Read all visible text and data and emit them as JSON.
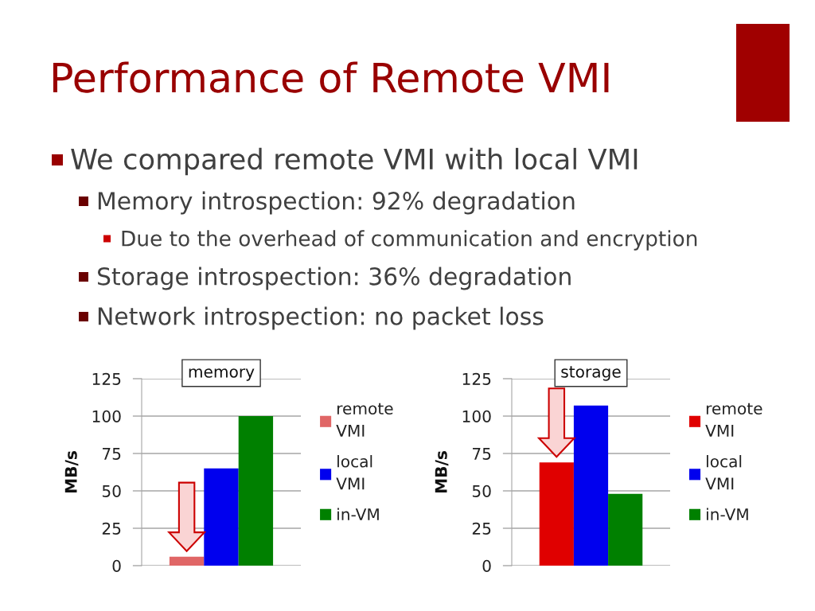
{
  "chart_data": [
    {
      "type": "other",
      "title": "Performance of Remote VMI",
      "annotations": [
        "We compared remote VMI with local VMI",
        "Memory introspection: 92% degradation",
        "Due to the overhead of communication and encryption",
        "Storage introspection: 36% degradation",
        "Network introspection: no packet loss"
      ]
    },
    {
      "type": "bar",
      "title": "memory",
      "categories": [
        null
      ],
      "series": [
        {
          "name": "remote VMI",
          "color": "#e06666",
          "values": [
            6
          ]
        },
        {
          "name": "local VMI",
          "color": "#0000ee",
          "values": [
            65
          ]
        },
        {
          "name": "in-VM",
          "color": "#008000",
          "values": [
            100
          ]
        }
      ],
      "ylabel": "MB/s",
      "ylim": [
        0,
        125
      ],
      "yticks": [
        0,
        25,
        50,
        75,
        100,
        125
      ],
      "grid": "y",
      "legend": "right"
    },
    {
      "type": "bar",
      "title": "storage",
      "categories": [
        null
      ],
      "series": [
        {
          "name": "remote VMI",
          "color": "#e00000",
          "values": [
            69
          ]
        },
        {
          "name": "local VMI",
          "color": "#0000ee",
          "values": [
            107
          ]
        },
        {
          "name": "in-VM",
          "color": "#008000",
          "values": [
            48
          ]
        }
      ],
      "ylabel": "MB/s",
      "ylim": [
        0,
        125
      ],
      "yticks": [
        0,
        25,
        50,
        75,
        100,
        125
      ],
      "grid": "y",
      "legend": "right"
    }
  ]
}
